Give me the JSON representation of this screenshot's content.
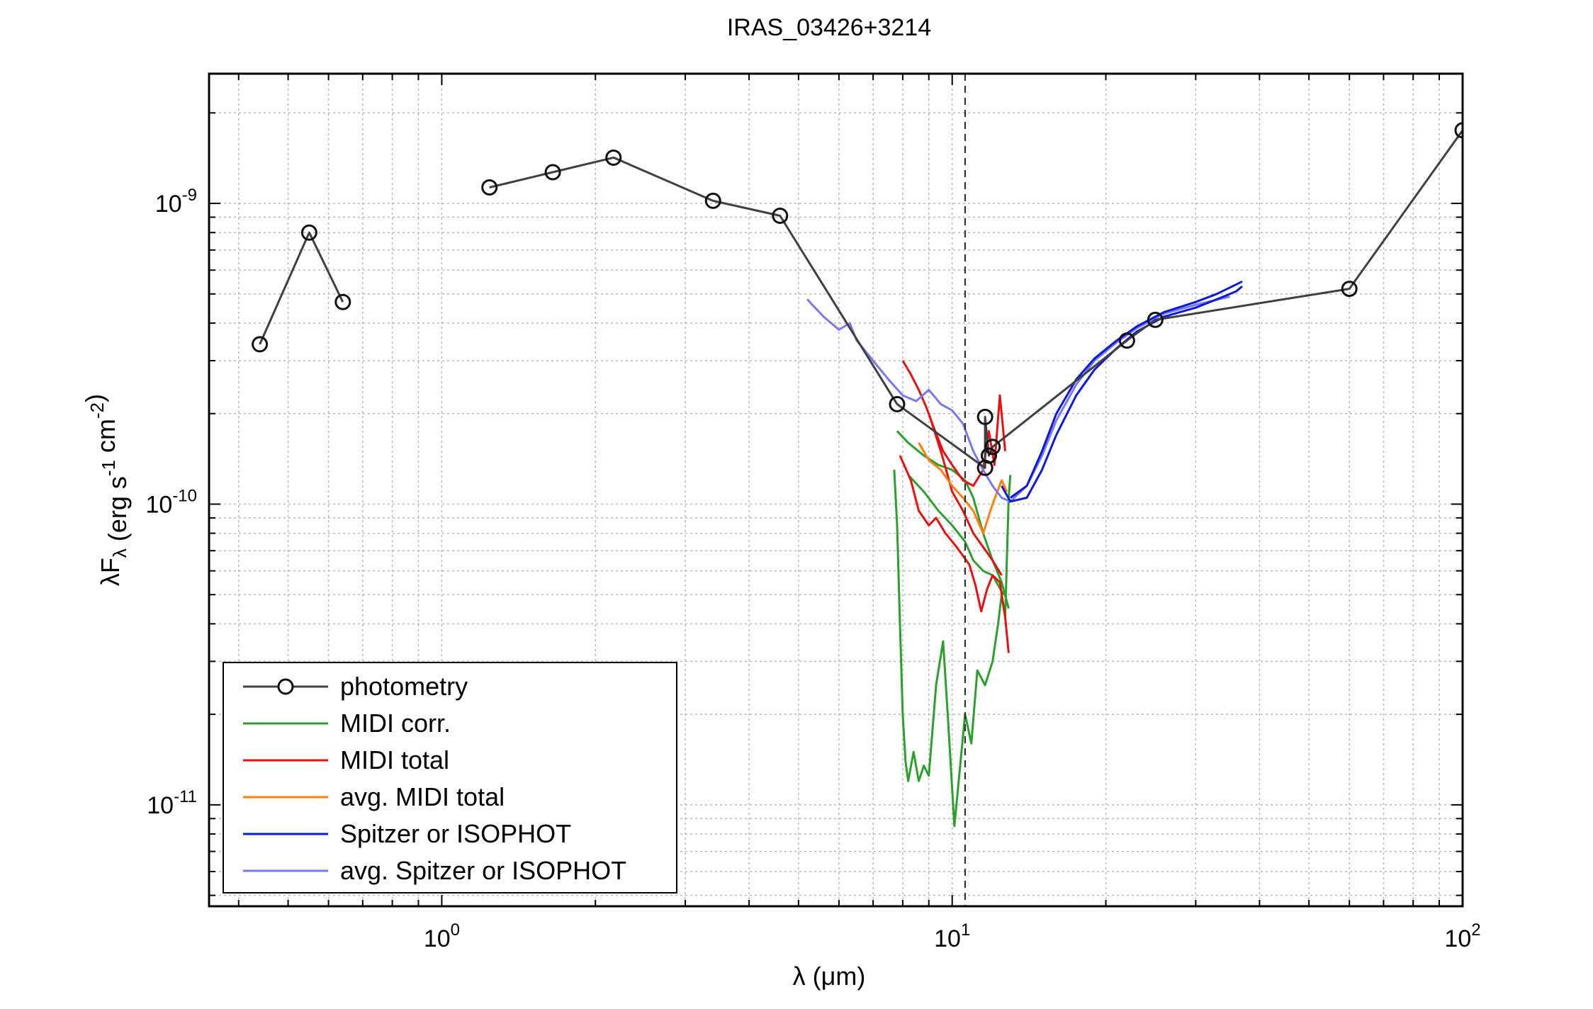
{
  "chart_data": {
    "type": "line",
    "title": "IRAS_03426+3214",
    "xlabel": "λ (μm)",
    "ylabel": "λF_λ (erg s^-1 cm^-2)",
    "x_scale": "log",
    "y_scale": "log",
    "xlim": [
      0.35,
      100
    ],
    "ylim": [
      4.6e-12,
      2.7e-09
    ],
    "grid": true,
    "legend_position": "bottom-left",
    "vline": 10.6,
    "x_ticks": [
      {
        "value": 1,
        "base": "10",
        "exp": "0"
      },
      {
        "value": 10,
        "base": "10",
        "exp": "1"
      },
      {
        "value": 100,
        "base": "10",
        "exp": "2"
      }
    ],
    "y_ticks": [
      {
        "value": 1e-11,
        "base": "10",
        "exp": "-11"
      },
      {
        "value": 1e-10,
        "base": "10",
        "exp": "-10"
      },
      {
        "value": 1e-09,
        "base": "10",
        "exp": "-9"
      }
    ],
    "series": [
      {
        "name": "photometry",
        "color": "#404040",
        "marker": "circle",
        "segments": [
          [
            [
              0.44,
              3.4e-10
            ],
            [
              0.55,
              8e-10
            ],
            [
              0.64,
              4.7e-10
            ]
          ],
          [
            [
              1.24,
              1.13e-09
            ],
            [
              1.65,
              1.27e-09
            ],
            [
              2.17,
              1.42e-09
            ],
            [
              3.4,
              1.02e-09
            ],
            [
              4.6,
              9.1e-10
            ],
            [
              7.8,
              2.15e-10
            ],
            [
              11.6,
              1.32e-10
            ],
            [
              11.6,
              1.95e-10
            ],
            [
              11.8,
              1.45e-10
            ],
            [
              12.0,
              1.55e-10
            ],
            [
              22.0,
              3.5e-10
            ],
            [
              25.0,
              4.1e-10
            ],
            [
              60.0,
              5.2e-10
            ],
            [
              100.0,
              1.75e-09
            ]
          ]
        ]
      },
      {
        "name": "MIDI corr.",
        "color": "#2ca02c",
        "marker": "none",
        "segments": [
          [
            [
              7.7,
              1.3e-10
            ],
            [
              7.8,
              8.5e-11
            ],
            [
              7.9,
              4e-11
            ],
            [
              8.0,
              2e-11
            ],
            [
              8.1,
              1.4e-11
            ],
            [
              8.2,
              1.2e-11
            ],
            [
              8.4,
              1.5e-11
            ],
            [
              8.6,
              1.2e-11
            ],
            [
              8.8,
              1.35e-11
            ],
            [
              9.0,
              1.25e-11
            ],
            [
              9.3,
              2.5e-11
            ],
            [
              9.6,
              3.5e-11
            ],
            [
              9.8,
              2e-11
            ],
            [
              10.1,
              8.5e-12
            ],
            [
              10.3,
              1.2e-11
            ],
            [
              10.6,
              2e-11
            ],
            [
              10.9,
              1.6e-11
            ],
            [
              11.2,
              2.8e-11
            ],
            [
              11.6,
              2.5e-11
            ],
            [
              12.0,
              3e-11
            ],
            [
              12.3,
              4e-11
            ],
            [
              12.5,
              5e-11
            ],
            [
              12.7,
              4.2e-11
            ],
            [
              12.9,
              1.05e-10
            ],
            [
              13.0,
              1.25e-10
            ]
          ],
          [
            [
              7.8,
              1.75e-10
            ],
            [
              8.2,
              1.6e-10
            ],
            [
              8.8,
              1.45e-10
            ],
            [
              9.4,
              1.35e-10
            ],
            [
              10.0,
              1.3e-10
            ],
            [
              10.6,
              1.2e-10
            ],
            [
              11.0,
              1.05e-10
            ],
            [
              11.5,
              8e-11
            ],
            [
              12.0,
              6.5e-11
            ],
            [
              12.5,
              5.5e-11
            ],
            [
              12.9,
              4.5e-11
            ]
          ],
          [
            [
              8.2,
              1.25e-10
            ],
            [
              8.8,
              1.1e-10
            ],
            [
              9.4,
              9.5e-11
            ],
            [
              10.0,
              8.5e-11
            ],
            [
              10.6,
              7.5e-11
            ],
            [
              11.0,
              6.5e-11
            ],
            [
              11.5,
              6e-11
            ],
            [
              12.0,
              5.8e-11
            ],
            [
              12.6,
              5e-11
            ]
          ]
        ]
      },
      {
        "name": "MIDI total",
        "color": "#e8110f",
        "marker": "none",
        "segments": [
          [
            [
              8.0,
              3e-10
            ],
            [
              8.3,
              2.7e-10
            ],
            [
              8.6,
              2.4e-10
            ],
            [
              8.9,
              2.1e-10
            ],
            [
              9.2,
              1.8e-10
            ],
            [
              9.6,
              1.5e-10
            ],
            [
              10.0,
              1.35e-10
            ],
            [
              10.5,
              1.2e-10
            ],
            [
              11.0,
              1.15e-10
            ],
            [
              11.5,
              1.3e-10
            ],
            [
              11.8,
              1.75e-10
            ],
            [
              12.1,
              1.35e-10
            ],
            [
              12.4,
              2.3e-10
            ],
            [
              12.7,
              1.5e-10
            ]
          ],
          [
            [
              7.9,
              1.45e-10
            ],
            [
              8.3,
              1.2e-10
            ],
            [
              8.6,
              9.5e-11
            ],
            [
              9.0,
              8.5e-11
            ],
            [
              9.3,
              9e-11
            ],
            [
              9.7,
              8e-11
            ],
            [
              10.2,
              7.2e-11
            ],
            [
              10.8,
              6.3e-11
            ],
            [
              11.1,
              5.4e-11
            ],
            [
              11.4,
              4.4e-11
            ],
            [
              11.7,
              5.2e-11
            ],
            [
              12.0,
              5.8e-11
            ],
            [
              12.4,
              5.5e-11
            ],
            [
              12.7,
              4.2e-11
            ],
            [
              12.9,
              3.2e-11
            ]
          ],
          [
            [
              9.0,
              2e-10
            ],
            [
              9.5,
              1.5e-10
            ],
            [
              10.0,
              1.1e-10
            ],
            [
              10.5,
              9.5e-11
            ],
            [
              11.0,
              8e-11
            ],
            [
              11.5,
              7.2e-11
            ],
            [
              12.0,
              6.5e-11
            ],
            [
              12.5,
              5.8e-11
            ]
          ]
        ]
      },
      {
        "name": "avg. MIDI total",
        "color": "#ff7f0e",
        "marker": "none",
        "segments": [
          [
            [
              8.6,
              1.6e-10
            ],
            [
              9.0,
              1.4e-10
            ],
            [
              9.5,
              1.3e-10
            ],
            [
              10.0,
              1.15e-10
            ],
            [
              10.5,
              1.05e-10
            ],
            [
              11.0,
              9.5e-11
            ],
            [
              11.5,
              8e-11
            ],
            [
              12.0,
              1e-10
            ],
            [
              12.5,
              1.2e-10
            ],
            [
              12.8,
              1.1e-10
            ]
          ]
        ]
      },
      {
        "name": "Spitzer or ISOPHOT",
        "color": "#0a1bd8",
        "marker": "none",
        "segments": [
          [
            [
              12.5,
              1.15e-10
            ],
            [
              13.0,
              1.02e-10
            ],
            [
              14.0,
              1.05e-10
            ],
            [
              15.0,
              1.3e-10
            ],
            [
              16.0,
              1.7e-10
            ],
            [
              17.5,
              2.3e-10
            ],
            [
              19.0,
              2.8e-10
            ],
            [
              21.0,
              3.3e-10
            ],
            [
              23.0,
              3.75e-10
            ],
            [
              26.0,
              4.2e-10
            ],
            [
              30.0,
              4.5e-10
            ],
            [
              33.0,
              4.8e-10
            ],
            [
              36.0,
              5.1e-10
            ],
            [
              37.0,
              5.3e-10
            ]
          ],
          [
            [
              13.0,
              1.05e-10
            ],
            [
              14.0,
              1.15e-10
            ],
            [
              15.0,
              1.5e-10
            ],
            [
              16.0,
              2e-10
            ],
            [
              17.5,
              2.6e-10
            ],
            [
              19.0,
              3.05e-10
            ],
            [
              21.0,
              3.5e-10
            ],
            [
              23.0,
              3.9e-10
            ],
            [
              26.0,
              4.35e-10
            ],
            [
              30.0,
              4.7e-10
            ],
            [
              33.0,
              5e-10
            ],
            [
              37.0,
              5.5e-10
            ]
          ]
        ]
      },
      {
        "name": "avg. Spitzer or ISOPHOT",
        "color": "#7878f0",
        "marker": "none",
        "segments": [
          [
            [
              5.2,
              4.8e-10
            ],
            [
              5.6,
              4.2e-10
            ],
            [
              6.0,
              3.8e-10
            ],
            [
              6.3,
              4e-10
            ],
            [
              6.5,
              3.5e-10
            ],
            [
              7.0,
              3e-10
            ],
            [
              7.5,
              2.6e-10
            ],
            [
              8.0,
              2.3e-10
            ],
            [
              8.5,
              2.2e-10
            ],
            [
              9.0,
              2.4e-10
            ],
            [
              9.5,
              2.15e-10
            ],
            [
              10.0,
              2.05e-10
            ],
            [
              10.5,
              1.85e-10
            ],
            [
              11.0,
              1.5e-10
            ],
            [
              11.5,
              1.3e-10
            ],
            [
              12.0,
              1.15e-10
            ],
            [
              12.5,
              1.05e-10
            ],
            [
              13.0,
              1.02e-10
            ],
            [
              14.0,
              1.15e-10
            ],
            [
              15.0,
              1.45e-10
            ],
            [
              16.0,
              1.9e-10
            ],
            [
              17.5,
              2.5e-10
            ],
            [
              19.0,
              3e-10
            ],
            [
              21.0,
              3.45e-10
            ],
            [
              23.0,
              3.85e-10
            ],
            [
              26.0,
              4.3e-10
            ],
            [
              30.0,
              4.6e-10
            ],
            [
              35.0,
              4.9e-10
            ]
          ]
        ]
      }
    ]
  }
}
